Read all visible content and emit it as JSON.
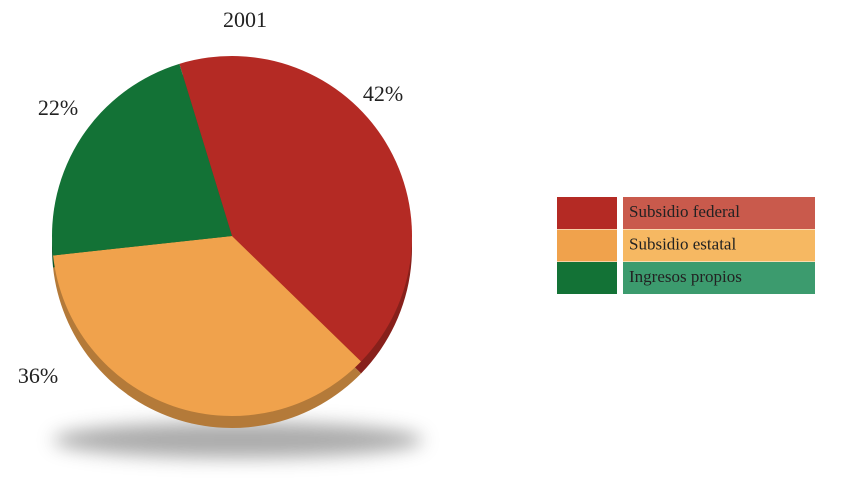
{
  "chart_data": {
    "type": "pie",
    "title": "2001",
    "categories": [
      "Subsidio federal",
      "Subsidio estatal",
      "Ingresos propios"
    ],
    "values": [
      42,
      36,
      22
    ],
    "value_labels": [
      "42%",
      "36%",
      "22%"
    ],
    "colors": [
      "#b42a24",
      "#f0a24c",
      "#137236"
    ]
  }
}
